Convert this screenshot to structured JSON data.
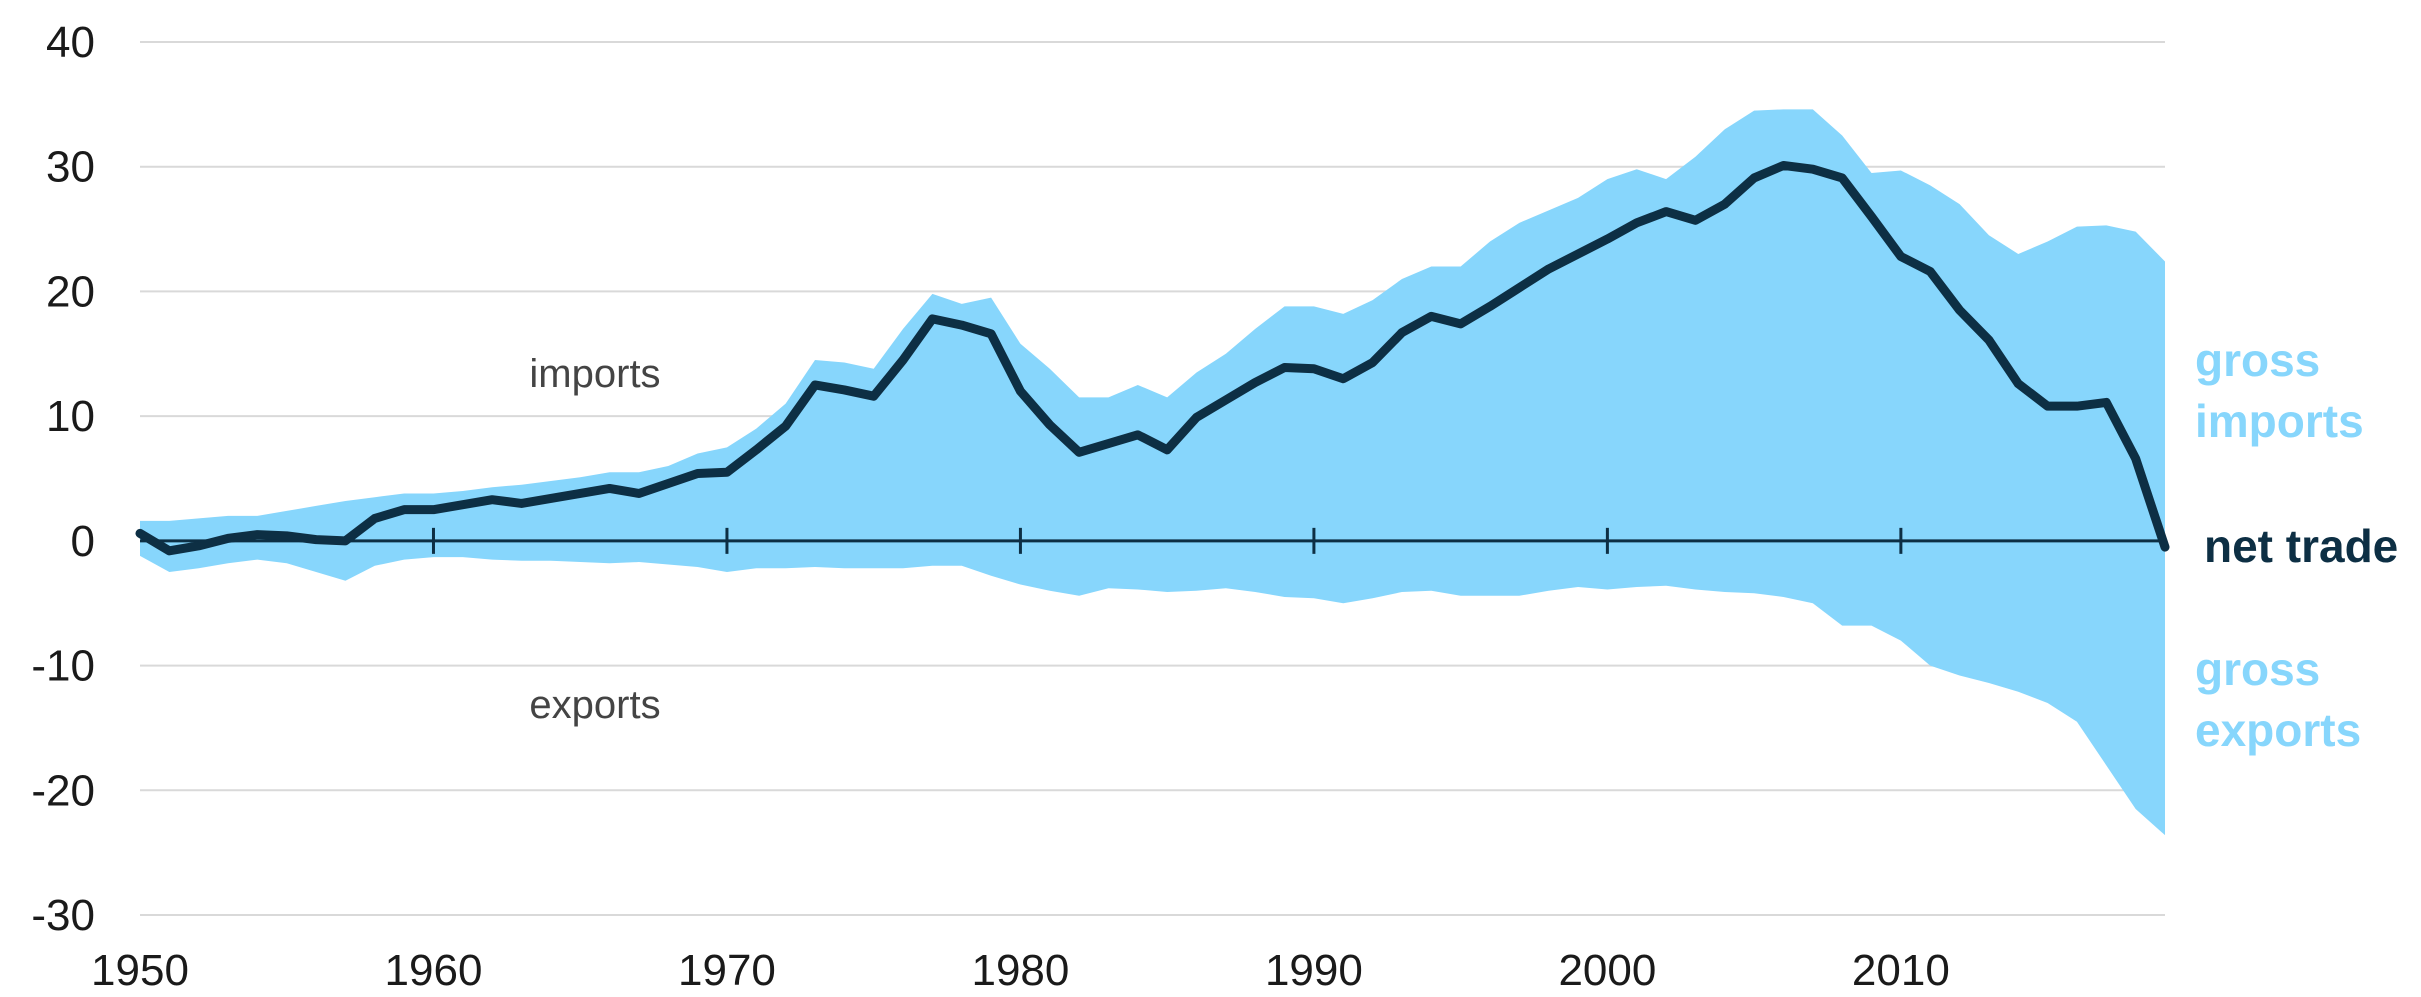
{
  "chart_data": {
    "type": "area",
    "x": [
      1950,
      1951,
      1952,
      1953,
      1954,
      1955,
      1956,
      1957,
      1958,
      1959,
      1960,
      1961,
      1962,
      1963,
      1964,
      1965,
      1966,
      1967,
      1968,
      1969,
      1970,
      1971,
      1972,
      1973,
      1974,
      1975,
      1976,
      1977,
      1978,
      1979,
      1980,
      1981,
      1982,
      1983,
      1984,
      1985,
      1986,
      1987,
      1988,
      1989,
      1990,
      1991,
      1992,
      1993,
      1994,
      1995,
      1996,
      1997,
      1998,
      1999,
      2000,
      2001,
      2002,
      2003,
      2004,
      2005,
      2006,
      2007,
      2008,
      2009,
      2010,
      2011,
      2012,
      2013,
      2014,
      2015,
      2016,
      2017,
      2018,
      2019
    ],
    "series": [
      {
        "name": "gross imports",
        "values": [
          1.6,
          1.6,
          1.8,
          2.0,
          2.0,
          2.4,
          2.8,
          3.2,
          3.5,
          3.8,
          3.8,
          4.0,
          4.3,
          4.5,
          4.8,
          5.1,
          5.5,
          5.5,
          6.0,
          7.0,
          7.5,
          9.0,
          11.0,
          14.5,
          14.3,
          13.8,
          17.0,
          19.8,
          19.0,
          19.5,
          15.8,
          13.8,
          11.5,
          11.5,
          12.5,
          11.5,
          13.5,
          15.0,
          17.0,
          18.8,
          18.8,
          18.2,
          19.3,
          21.0,
          22.0,
          22.0,
          24.0,
          25.5,
          26.5,
          27.5,
          29.0,
          29.8,
          29.0,
          30.8,
          33.0,
          34.5,
          34.6,
          34.6,
          32.5,
          29.5,
          29.7,
          28.5,
          27.0,
          24.5,
          23.0,
          24.0,
          25.2,
          25.3,
          24.8,
          22.4
        ],
        "color": "#87d6fc"
      },
      {
        "name": "gross exports",
        "values": [
          -1.2,
          -2.5,
          -2.2,
          -1.8,
          -1.5,
          -1.8,
          -2.5,
          -3.2,
          -2.0,
          -1.5,
          -1.3,
          -1.3,
          -1.5,
          -1.6,
          -1.6,
          -1.7,
          -1.8,
          -1.7,
          -1.9,
          -2.1,
          -2.5,
          -2.2,
          -2.2,
          -2.1,
          -2.2,
          -2.2,
          -2.2,
          -2.0,
          -2.0,
          -2.8,
          -3.5,
          -4.0,
          -4.4,
          -3.8,
          -3.9,
          -4.1,
          -4.0,
          -3.8,
          -4.1,
          -4.5,
          -4.6,
          -5.0,
          -4.6,
          -4.1,
          -4.0,
          -4.4,
          -4.4,
          -4.4,
          -4.0,
          -3.7,
          -3.9,
          -3.7,
          -3.6,
          -3.9,
          -4.1,
          -4.2,
          -4.5,
          -5.0,
          -6.8,
          -6.8,
          -8.0,
          -10.0,
          -10.8,
          -11.4,
          -12.1,
          -13.0,
          -14.5,
          -18.0,
          -21.5,
          -23.6
        ],
        "color": "#87d6fc"
      },
      {
        "name": "net trade",
        "values": [
          0.6,
          -0.8,
          -0.4,
          0.2,
          0.5,
          0.4,
          0.1,
          0.0,
          1.8,
          2.5,
          2.5,
          2.9,
          3.3,
          3.0,
          3.4,
          3.8,
          4.2,
          3.8,
          4.6,
          5.4,
          5.5,
          7.3,
          9.2,
          12.5,
          12.1,
          11.6,
          14.5,
          17.8,
          17.3,
          16.6,
          12.0,
          9.3,
          7.1,
          7.8,
          8.5,
          7.3,
          9.9,
          11.3,
          12.7,
          13.9,
          13.8,
          13.0,
          14.3,
          16.7,
          18.0,
          17.4,
          18.8,
          20.3,
          21.8,
          23.0,
          24.2,
          25.5,
          26.4,
          25.7,
          27.0,
          29.1,
          30.1,
          29.8,
          29.1,
          26.0,
          22.8,
          21.6,
          18.5,
          16.1,
          12.6,
          10.8,
          10.8,
          11.1,
          6.6,
          -0.5
        ],
        "color": "#0d2f44"
      }
    ],
    "series_labels": {
      "imports": [
        "gross",
        "imports"
      ],
      "net": "net trade",
      "exports": [
        "gross",
        "exports"
      ]
    },
    "annotations": {
      "imports": "imports",
      "exports": "exports"
    },
    "yticks": [
      "40",
      "30",
      "20",
      "10",
      "0",
      "-10",
      "-20",
      "-30"
    ],
    "ytick_values": [
      40,
      30,
      20,
      10,
      0,
      -10,
      -20,
      -30
    ],
    "xticks": [
      "1950",
      "1960",
      "1970",
      "1980",
      "1990",
      "2000",
      "2010"
    ],
    "xtick_values": [
      1950,
      1960,
      1970,
      1980,
      1990,
      2000,
      2010
    ],
    "xlim": [
      1950,
      2019
    ],
    "ylim": [
      -30,
      40
    ],
    "grid": "horizontal",
    "legend": "none",
    "title": "",
    "xlabel": "",
    "ylabel": ""
  }
}
